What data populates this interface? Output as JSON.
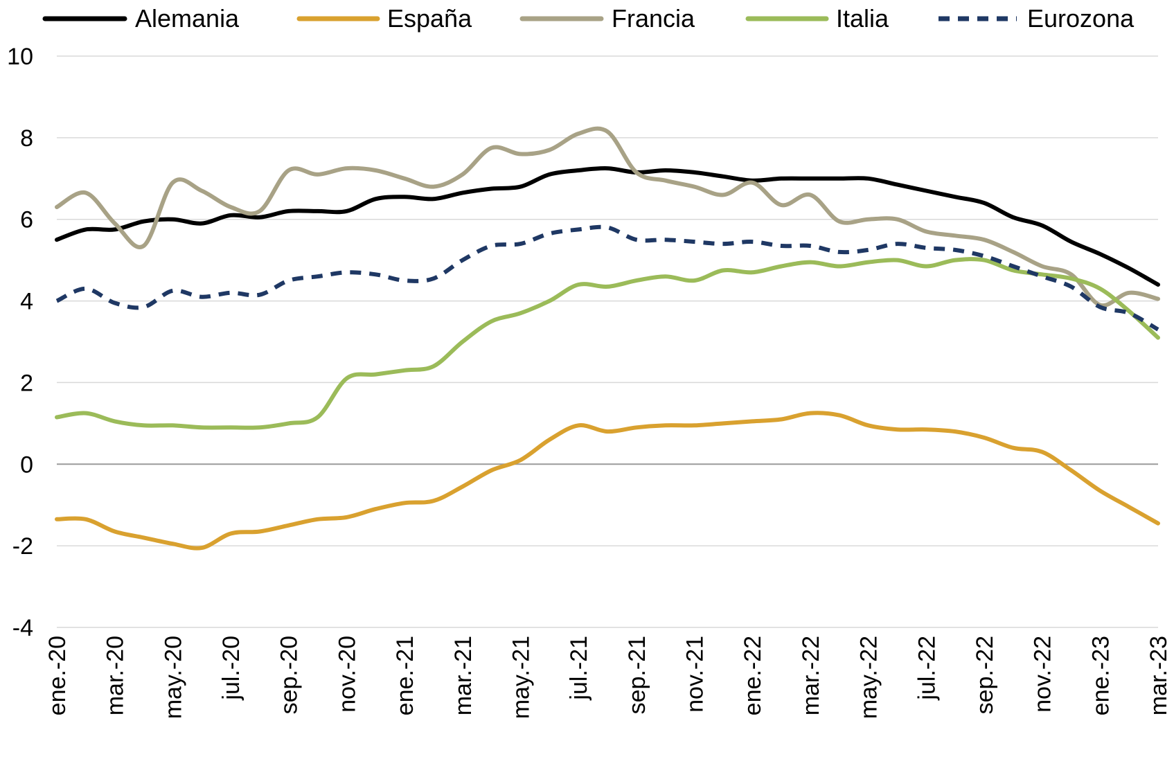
{
  "chart_data": {
    "type": "line",
    "title": "",
    "xlabel": "",
    "ylabel": "",
    "ylim": [
      -4,
      10
    ],
    "yticks": [
      -4,
      -2,
      0,
      2,
      4,
      6,
      8,
      10
    ],
    "grid": "horizontal",
    "legend": "top",
    "x": [
      "ene.-20",
      "feb.-20",
      "mar.-20",
      "abr.-20",
      "may.-20",
      "jun.-20",
      "jul.-20",
      "ago.-20",
      "sep.-20",
      "oct.-20",
      "nov.-20",
      "dic.-20",
      "ene.-21",
      "feb.-21",
      "mar.-21",
      "abr.-21",
      "may.-21",
      "jun.-21",
      "jul.-21",
      "ago.-21",
      "sep.-21",
      "oct.-21",
      "nov.-21",
      "dic.-21",
      "ene.-22",
      "feb.-22",
      "mar.-22",
      "abr.-22",
      "may.-22",
      "jun.-22",
      "jul.-22",
      "ago.-22",
      "sep.-22",
      "oct.-22",
      "nov.-22",
      "dic.-22",
      "ene.-23",
      "feb.-23",
      "mar.-23"
    ],
    "xtick_labels": [
      "ene.-20",
      "mar.-20",
      "may.-20",
      "jul.-20",
      "sep.-20",
      "nov.-20",
      "ene.-21",
      "mar.-21",
      "may.-21",
      "jul.-21",
      "sep.-21",
      "nov.-21",
      "ene.-22",
      "mar.-22",
      "may.-22",
      "jul.-22",
      "sep.-22",
      "nov.-22",
      "ene.-23",
      "mar.-23"
    ],
    "series": [
      {
        "name": "Alemania",
        "color": "#000000",
        "dash": false,
        "values": [
          5.5,
          5.75,
          5.75,
          5.95,
          6.0,
          5.9,
          6.1,
          6.05,
          6.2,
          6.2,
          6.2,
          6.5,
          6.55,
          6.5,
          6.65,
          6.75,
          6.8,
          7.1,
          7.2,
          7.25,
          7.15,
          7.2,
          7.15,
          7.05,
          6.95,
          7.0,
          7.0,
          7.0,
          7.0,
          6.85,
          6.7,
          6.55,
          6.4,
          6.05,
          5.85,
          5.45,
          5.15,
          4.8,
          4.4
        ]
      },
      {
        "name": "España",
        "color": "#D9A12F",
        "dash": false,
        "values": [
          -1.35,
          -1.35,
          -1.65,
          -1.8,
          -1.95,
          -2.05,
          -1.7,
          -1.65,
          -1.5,
          -1.35,
          -1.3,
          -1.1,
          -0.95,
          -0.9,
          -0.55,
          -0.15,
          0.1,
          0.6,
          0.95,
          0.8,
          0.9,
          0.95,
          0.95,
          1.0,
          1.05,
          1.1,
          1.25,
          1.2,
          0.95,
          0.85,
          0.85,
          0.8,
          0.65,
          0.4,
          0.3,
          -0.15,
          -0.65,
          -1.05,
          -1.45
        ]
      },
      {
        "name": "Francia",
        "color": "#A8A286",
        "dash": false,
        "values": [
          6.3,
          6.65,
          5.9,
          5.35,
          6.9,
          6.7,
          6.3,
          6.2,
          7.2,
          7.1,
          7.25,
          7.2,
          7.0,
          6.8,
          7.1,
          7.75,
          7.6,
          7.7,
          8.1,
          8.15,
          7.15,
          6.95,
          6.8,
          6.6,
          6.9,
          6.35,
          6.6,
          5.95,
          6.0,
          6.0,
          5.7,
          5.6,
          5.5,
          5.2,
          4.85,
          4.65,
          3.9,
          4.2,
          4.05
        ]
      },
      {
        "name": "Italia",
        "color": "#9BBB59",
        "dash": false,
        "values": [
          1.15,
          1.25,
          1.05,
          0.95,
          0.95,
          0.9,
          0.9,
          0.9,
          1.0,
          1.15,
          2.1,
          2.2,
          2.3,
          2.4,
          3.0,
          3.5,
          3.7,
          4.0,
          4.4,
          4.35,
          4.5,
          4.6,
          4.5,
          4.75,
          4.7,
          4.85,
          4.95,
          4.85,
          4.95,
          5.0,
          4.85,
          5.0,
          5.0,
          4.75,
          4.65,
          4.55,
          4.3,
          3.75,
          3.1
        ]
      },
      {
        "name": "Eurozona",
        "color": "#1F3864",
        "dash": true,
        "values": [
          4.0,
          4.3,
          3.95,
          3.85,
          4.25,
          4.1,
          4.2,
          4.15,
          4.5,
          4.6,
          4.7,
          4.65,
          4.5,
          4.55,
          5.0,
          5.35,
          5.4,
          5.65,
          5.75,
          5.8,
          5.5,
          5.5,
          5.45,
          5.4,
          5.45,
          5.35,
          5.35,
          5.2,
          5.25,
          5.4,
          5.3,
          5.25,
          5.1,
          4.85,
          4.6,
          4.35,
          3.85,
          3.7,
          3.3
        ]
      }
    ]
  }
}
